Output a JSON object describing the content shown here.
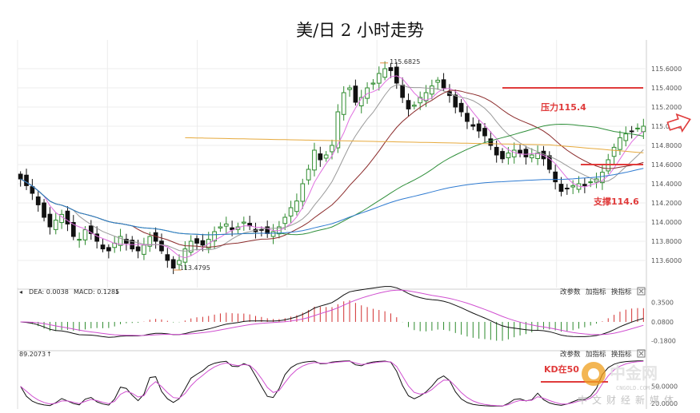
{
  "title": "美/日 2 小时走势",
  "colors": {
    "up": "#2e8b2e",
    "down": "#111111",
    "ma5": "#e070e0",
    "ma10": "#9a9a9a",
    "ma20": "#8b2b2b",
    "ma60": "#2f8f3a",
    "ma120": "#2f7bd1",
    "ma250": "#e6a93c",
    "annotation": "#e03b3b",
    "grid": "#ececec",
    "dif": "#111111",
    "dea": "#d04fd0",
    "macd_pos": "#d23030",
    "macd_neg": "#2e8b2e",
    "k": "#111111",
    "d": "#d04fd0"
  },
  "chart_data": [
    {
      "type": "candlestick",
      "title": "美/日 2 小时走势",
      "ylim": [
        113.4,
        115.8
      ],
      "y_ticks": [
        "115.6000",
        "115.4000",
        "115.2000",
        "115.0000",
        "114.8000",
        "114.6000",
        "114.4000",
        "114.2000",
        "114.0000",
        "113.8000",
        "113.6000"
      ],
      "annotations": {
        "high_label": "115.6825",
        "low_label": "113.4795",
        "resistance_label": "压力115.4",
        "support_label": "支撑114.6",
        "resistance_level": 115.4,
        "support_level": 114.6,
        "arrow": "right-arrow-icon"
      },
      "series": [
        {
          "name": "",
          "role": "price",
          "values": [
            114.45,
            114.38,
            114.3,
            114.18,
            114.05,
            113.95,
            114.02,
            114.08,
            113.98,
            113.85,
            113.82,
            113.92,
            113.88,
            113.8,
            113.72,
            113.7,
            113.78,
            113.85,
            113.78,
            113.72,
            113.7,
            113.76,
            113.85,
            113.8,
            113.7,
            113.6,
            113.52,
            113.6,
            113.72,
            113.8,
            113.78,
            113.76,
            113.82,
            113.9,
            113.95,
            113.98,
            113.92,
            113.95,
            114.0,
            113.96,
            113.9,
            113.92,
            113.88,
            113.9,
            113.95,
            114.05,
            114.15,
            114.22,
            114.4,
            114.55,
            114.75,
            114.65,
            114.7,
            114.8,
            115.15,
            115.35,
            115.4,
            115.25,
            115.3,
            115.4,
            115.45,
            115.55,
            115.6,
            115.58,
            115.45,
            115.3,
            115.18,
            115.22,
            115.3,
            115.35,
            115.42,
            115.48,
            115.4,
            115.32,
            115.2,
            115.15,
            115.05,
            115.0,
            114.95,
            114.9,
            114.8,
            114.7,
            114.66,
            114.72,
            114.75,
            114.72,
            114.68,
            114.7,
            114.72,
            114.66,
            114.55,
            114.42,
            114.32,
            114.35,
            114.38,
            114.4,
            114.38,
            114.42,
            114.45,
            114.52,
            114.65,
            114.78,
            114.88,
            114.92,
            114.95,
            114.98,
            115.0
          ]
        }
      ],
      "moving_averages": [
        {
          "name": "",
          "role": "ma5"
        },
        {
          "name": "",
          "role": "ma10"
        },
        {
          "name": "",
          "role": "ma20"
        },
        {
          "name": "",
          "role": "ma60"
        },
        {
          "name": "",
          "role": "ma120"
        },
        {
          "name": "",
          "role": "ma250"
        }
      ]
    },
    {
      "type": "bar",
      "ylim": [
        -0.25,
        0.42
      ],
      "y_ticks": [
        "0.3500",
        "0.0800",
        "-0.1800"
      ],
      "header": {
        "dea": "DEA: 0.0038",
        "macd": "MACD: 0.1285",
        "arrow": "↓"
      },
      "buttons": [
        "改参数",
        "加指标",
        "换指标"
      ],
      "series": [
        {
          "name": "DEA",
          "role": "dea"
        },
        {
          "name": "",
          "role": "dif"
        },
        {
          "name": "MACD",
          "role": "macd"
        }
      ]
    },
    {
      "type": "line",
      "ylim": [
        10,
        100
      ],
      "y_ticks": [
        "50.0000",
        "20.0000"
      ],
      "header": {
        "value": "89.2073",
        "arrow": "↑"
      },
      "buttons": [
        "改参数",
        "加指标",
        "换指标"
      ],
      "annotation": "KD在50",
      "series": [
        {
          "name": "",
          "role": "k"
        },
        {
          "name": "",
          "role": "d"
        }
      ]
    }
  ],
  "watermark": {
    "brand": "中金网",
    "domain": "CNGOLD.COM.CN",
    "tagline": "中文财经新媒体"
  }
}
